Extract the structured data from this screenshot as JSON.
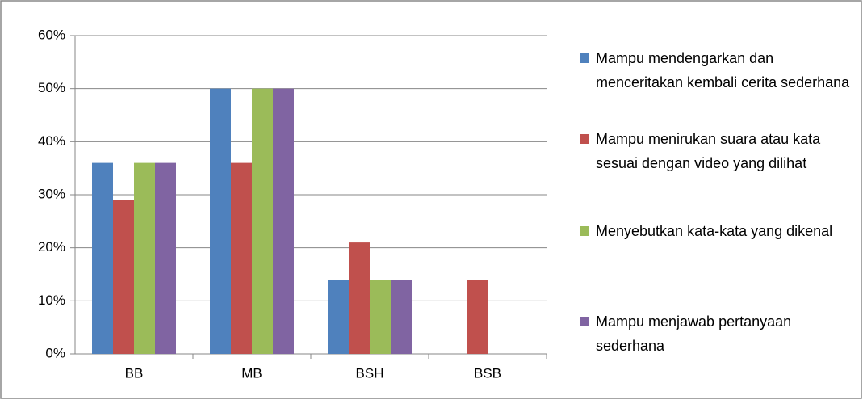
{
  "chart_data": {
    "type": "bar",
    "categories": [
      "BB",
      "MB",
      "BSH",
      "BSB"
    ],
    "series": [
      {
        "name": "Mampu mendengarkan dan menceritakan kembali cerita sederhana",
        "color": "#4f81bd",
        "values": [
          36,
          50,
          14,
          0
        ]
      },
      {
        "name": "Mampu menirukan suara atau kata sesuai dengan video yang dilihat",
        "color": "#c0504d",
        "values": [
          29,
          36,
          21,
          14
        ]
      },
      {
        "name": "Menyebutkan kata-kata yang dikenal",
        "color": "#9bbb59",
        "values": [
          36,
          50,
          14,
          0
        ]
      },
      {
        "name": "Mampu menjawab pertanyaan sederhana",
        "color": "#8064a2",
        "values": [
          36,
          50,
          14,
          0
        ]
      }
    ],
    "ylim": [
      0,
      60
    ],
    "yticks": [
      {
        "value": 0,
        "label": "0%"
      },
      {
        "value": 10,
        "label": "10%"
      },
      {
        "value": 20,
        "label": "20%"
      },
      {
        "value": 30,
        "label": "30%"
      },
      {
        "value": 40,
        "label": "40%"
      },
      {
        "value": 50,
        "label": "50%"
      },
      {
        "value": 60,
        "label": "60%"
      }
    ],
    "grid": true,
    "legend": "right"
  }
}
